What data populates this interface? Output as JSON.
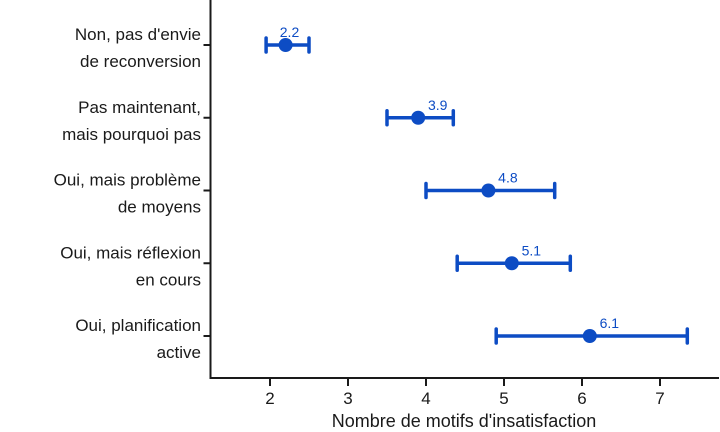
{
  "chart_data": {
    "type": "scatter",
    "subtype": "horizontal-dot-plot-with-error-bars",
    "title": "",
    "xlabel": "Nombre de motifs d'insatisfaction",
    "ylabel": "",
    "categories": [
      [
        "Non, pas d'envie",
        "de reconversion"
      ],
      [
        "Pas maintenant,",
        "mais pourquoi pas"
      ],
      [
        "Oui, mais problème",
        "de moyens"
      ],
      [
        "Oui, mais réflexion",
        "en cours"
      ],
      [
        "Oui, planification",
        "active"
      ]
    ],
    "values": [
      2.2,
      3.9,
      4.8,
      5.1,
      6.1
    ],
    "error_low": [
      1.95,
      3.5,
      4.0,
      4.4,
      4.9
    ],
    "error_high": [
      2.5,
      4.35,
      5.65,
      5.85,
      7.35
    ],
    "value_labels": [
      "2.2",
      "3.9",
      "4.8",
      "5.1",
      "6.1"
    ],
    "x_ticks": [
      "2",
      "3",
      "4",
      "5",
      "6",
      "7"
    ],
    "x_tick_values": [
      2,
      3,
      4,
      5,
      6,
      7
    ],
    "xlim": [
      1.26,
      7.77
    ],
    "grid": false,
    "legend": "none",
    "colors": {
      "marker": "#0d4cc4",
      "axis": "#1a1a1a",
      "text": "#1a1a1a"
    }
  }
}
